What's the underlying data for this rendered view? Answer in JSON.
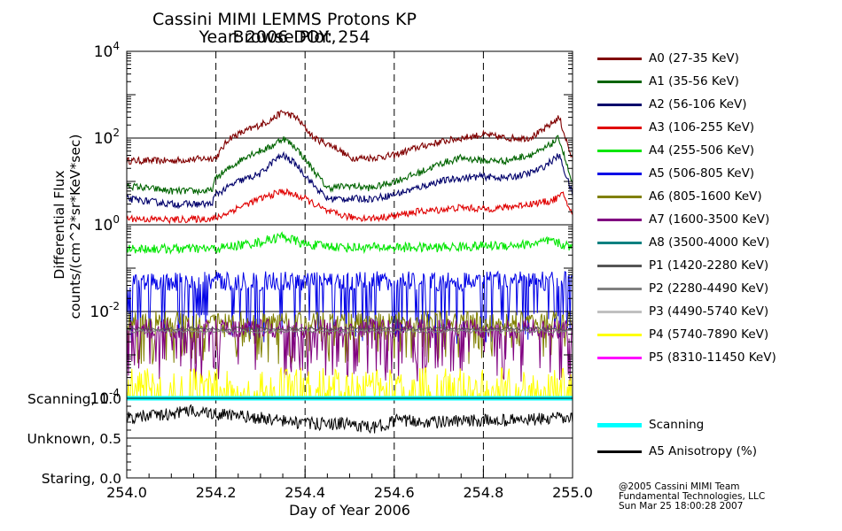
{
  "header": {
    "title_line1": "Cassini MIMI LEMMS Protons KP Browse Plot,",
    "title_line2": "Year: 2006 DOY: 254"
  },
  "credits": {
    "line1": "@2005 Cassini MIMI Team",
    "line2": "Fundamental Technologies, LLC",
    "line3": "Sun Mar 25 18:00:28 2007"
  },
  "chart_data": [
    {
      "type": "line",
      "title": "Cassini MIMI LEMMS Protons KP Browse Plot, Year: 2006 DOY: 254",
      "ylabel_line1": "Differential Flux",
      "ylabel_line2": "counts/(cm^2*sr*KeV*sec)",
      "yscale": "log",
      "ylim": [
        0.0001,
        10000
      ],
      "yticks": [
        {
          "exp": -4,
          "base": "10",
          "sup": "-4"
        },
        {
          "exp": -2,
          "base": "10",
          "sup": "-2"
        },
        {
          "exp": 0,
          "base": "10",
          "sup": "0"
        },
        {
          "exp": 2,
          "base": "10",
          "sup": "2"
        },
        {
          "exp": 4,
          "base": "10",
          "sup": "4"
        }
      ],
      "xlim": [
        254.0,
        255.0
      ],
      "grid": true,
      "legend_position": "right",
      "series": [
        {
          "name": "A0 (27-35 KeV)",
          "color": "#800000",
          "style": "smooth",
          "values": [
            [
              254.0,
              30
            ],
            [
              254.1,
              30
            ],
            [
              254.2,
              35
            ],
            [
              254.23,
              100
            ],
            [
              254.27,
              150
            ],
            [
              254.32,
              250
            ],
            [
              254.35,
              400
            ],
            [
              254.38,
              300
            ],
            [
              254.42,
              100
            ],
            [
              254.47,
              60
            ],
            [
              254.5,
              35
            ],
            [
              254.55,
              35
            ],
            [
              254.6,
              40
            ],
            [
              254.65,
              60
            ],
            [
              254.7,
              80
            ],
            [
              254.75,
              100
            ],
            [
              254.8,
              120
            ],
            [
              254.85,
              100
            ],
            [
              254.9,
              100
            ],
            [
              254.93,
              140
            ],
            [
              254.97,
              300
            ],
            [
              255.0,
              30
            ]
          ]
        },
        {
          "name": "A1 (35-56 KeV)",
          "color": "#006400",
          "style": "smooth",
          "values": [
            [
              254.0,
              8
            ],
            [
              254.1,
              6
            ],
            [
              254.19,
              6
            ],
            [
              254.2,
              12
            ],
            [
              254.23,
              20
            ],
            [
              254.27,
              40
            ],
            [
              254.32,
              60
            ],
            [
              254.35,
              100
            ],
            [
              254.38,
              60
            ],
            [
              254.45,
              7
            ],
            [
              254.5,
              8
            ],
            [
              254.55,
              7
            ],
            [
              254.6,
              10
            ],
            [
              254.65,
              15
            ],
            [
              254.7,
              25
            ],
            [
              254.75,
              35
            ],
            [
              254.8,
              30
            ],
            [
              254.85,
              30
            ],
            [
              254.9,
              40
            ],
            [
              254.93,
              50
            ],
            [
              254.97,
              100
            ],
            [
              255.0,
              8
            ]
          ]
        },
        {
          "name": "A2 (56-106 KeV)",
          "color": "#00006b",
          "style": "smooth",
          "values": [
            [
              254.0,
              4
            ],
            [
              254.1,
              3
            ],
            [
              254.19,
              3
            ],
            [
              254.2,
              5
            ],
            [
              254.25,
              10
            ],
            [
              254.3,
              15
            ],
            [
              254.33,
              30
            ],
            [
              254.35,
              40
            ],
            [
              254.38,
              25
            ],
            [
              254.42,
              8
            ],
            [
              254.45,
              4
            ],
            [
              254.5,
              4
            ],
            [
              254.55,
              4
            ],
            [
              254.6,
              5
            ],
            [
              254.65,
              7
            ],
            [
              254.7,
              10
            ],
            [
              254.75,
              12
            ],
            [
              254.8,
              13
            ],
            [
              254.85,
              12
            ],
            [
              254.9,
              15
            ],
            [
              254.93,
              20
            ],
            [
              254.97,
              40
            ],
            [
              255.0,
              5
            ]
          ]
        },
        {
          "name": "A3 (106-255 KeV)",
          "color": "#e00000",
          "style": "smooth",
          "values": [
            [
              254.0,
              1.4
            ],
            [
              254.1,
              1.3
            ],
            [
              254.2,
              1.4
            ],
            [
              254.25,
              2.5
            ],
            [
              254.3,
              4
            ],
            [
              254.35,
              6
            ],
            [
              254.4,
              4
            ],
            [
              254.45,
              2
            ],
            [
              254.5,
              1.5
            ],
            [
              254.55,
              1.4
            ],
            [
              254.6,
              1.6
            ],
            [
              254.65,
              2
            ],
            [
              254.7,
              2.2
            ],
            [
              254.75,
              2.5
            ],
            [
              254.8,
              2.3
            ],
            [
              254.85,
              2.5
            ],
            [
              254.9,
              3
            ],
            [
              254.95,
              3.5
            ],
            [
              254.98,
              5
            ],
            [
              255.0,
              1.6
            ]
          ]
        },
        {
          "name": "A4 (255-506 KeV)",
          "color": "#00e600",
          "style": "band",
          "values": [
            [
              254.0,
              0.28
            ],
            [
              254.2,
              0.28
            ],
            [
              254.3,
              0.4
            ],
            [
              254.35,
              0.55
            ],
            [
              254.4,
              0.35
            ],
            [
              254.5,
              0.3
            ],
            [
              254.7,
              0.3
            ],
            [
              254.9,
              0.35
            ],
            [
              254.95,
              0.42
            ],
            [
              255.0,
              0.3
            ]
          ]
        },
        {
          "name": "A5 (506-805 KeV)",
          "color": "#0000e6",
          "style": "noisy",
          "base": 0.05,
          "low": 0.004
        },
        {
          "name": "A6 (805-1600 KeV)",
          "color": "#808000",
          "style": "noisy",
          "base": 0.006,
          "low": 0.0015
        },
        {
          "name": "A7 (1600-3500 KeV)",
          "color": "#800080",
          "style": "noisy",
          "base": 0.004,
          "low": 0.0006
        },
        {
          "name": "A8 (3500-4000 KeV)",
          "color": "#008080",
          "style": "none"
        },
        {
          "name": "P1 (1420-2280 KeV)",
          "color": "#555555",
          "style": "flat",
          "base": 0.004
        },
        {
          "name": "P2 (2280-4490 KeV)",
          "color": "#808080",
          "style": "flat",
          "base": 0.0035
        },
        {
          "name": "P3 (4490-5740 KeV)",
          "color": "#c0c0c0",
          "style": "none"
        },
        {
          "name": "P4 (5740-7890 KeV)",
          "color": "#ffff00",
          "style": "yellow",
          "base": 0.0002
        },
        {
          "name": "P5 (8310-11450 KeV)",
          "color": "#ff00ff",
          "style": "none"
        }
      ]
    },
    {
      "type": "line",
      "xlabel": "Day of Year 2006",
      "xticks": [
        "254.0",
        "254.2",
        "254.4",
        "254.6",
        "254.8",
        "255.0"
      ],
      "xtick_values": [
        254.0,
        254.2,
        254.4,
        254.6,
        254.8,
        255.0
      ],
      "xlim": [
        254.0,
        255.0
      ],
      "ylim": [
        0.0,
        1.0
      ],
      "ytick_values": [
        0.0,
        0.5,
        1.0
      ],
      "ytick_labels": [
        "Staring, 0.0",
        "Unknown, 0.5",
        "Scanning, 1.0"
      ],
      "series": [
        {
          "name": "Scanning",
          "color": "#00ffff",
          "style": "constant",
          "value": 1.0
        },
        {
          "name": "A5 Anisotropy (%)",
          "color": "#000000",
          "style": "noisy",
          "values": [
            [
              254.0,
              0.75
            ],
            [
              254.05,
              0.78
            ],
            [
              254.1,
              0.8
            ],
            [
              254.15,
              0.85
            ],
            [
              254.2,
              0.8
            ],
            [
              254.3,
              0.75
            ],
            [
              254.4,
              0.68
            ],
            [
              254.5,
              0.68
            ],
            [
              254.55,
              0.62
            ],
            [
              254.6,
              0.72
            ],
            [
              254.7,
              0.7
            ],
            [
              254.8,
              0.72
            ],
            [
              254.9,
              0.73
            ],
            [
              255.0,
              0.75
            ]
          ]
        }
      ]
    }
  ]
}
